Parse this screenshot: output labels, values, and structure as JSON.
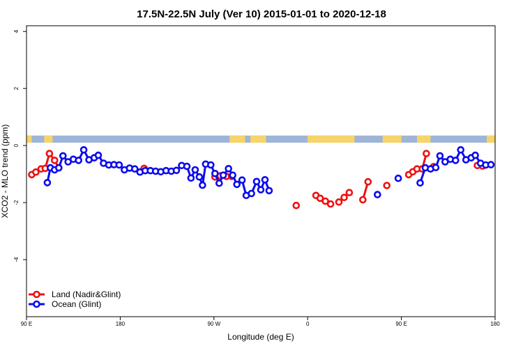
{
  "chart_data": {
    "type": "line",
    "title": "17.5N-22.5N July (Ver 10)   2015-01-01 to 2020-12-18",
    "xlabel": "Longitude (deg E)",
    "ylabel": "XCO2 - MLO trend (ppm)",
    "x_tick_labels": [
      "90 E",
      "180",
      "90 W",
      "0",
      "90 E",
      "180"
    ],
    "x_tick_positions": [
      90,
      180,
      270,
      360,
      450,
      540
    ],
    "xlim": [
      90,
      540
    ],
    "y_ticks": [
      4,
      2,
      0,
      -2,
      -4
    ],
    "ylim": [
      -6,
      4.2
    ],
    "grid": false,
    "legend_position": "bottom-left",
    "map_strip": {
      "y_range": [
        0.1,
        0.35
      ],
      "ocean_color": "#9eb5d8",
      "land_color": "#f6d46a"
    },
    "series": [
      {
        "name": "Land (Nadir&Glint)",
        "color": "#ee1111",
        "segments": [
          [
            [
              95,
              -1.02
            ],
            [
              99,
              -0.93
            ],
            [
              104,
              -0.82
            ],
            [
              108,
              -0.8
            ],
            [
              112,
              -0.28
            ],
            [
              117,
              -0.52
            ],
            [
              121,
              -0.78
            ]
          ],
          [
            [
              203,
              -0.8
            ]
          ],
          [
            [
              271,
              -1.1
            ],
            [
              276,
              -1.06
            ],
            [
              282,
              -1.08
            ],
            [
              287,
              -1.08
            ]
          ],
          [
            [
              349,
              -2.1
            ]
          ],
          [
            [
              368,
              -1.75
            ],
            [
              372,
              -1.85
            ],
            [
              377,
              -1.95
            ],
            [
              382,
              -2.05
            ]
          ],
          [
            [
              390,
              -1.98
            ],
            [
              395,
              -1.82
            ],
            [
              400,
              -1.65
            ]
          ],
          [
            [
              413,
              -1.9
            ],
            [
              418,
              -1.27
            ]
          ],
          [
            [
              436,
              -1.4
            ]
          ],
          [
            [
              457,
              -1.02
            ],
            [
              461,
              -0.92
            ],
            [
              465,
              -0.82
            ],
            [
              470,
              -0.82
            ],
            [
              474,
              -0.28
            ]
          ],
          [
            [
              481,
              -0.74
            ]
          ],
          [
            [
              523,
              -0.7
            ],
            [
              528,
              -0.72
            ]
          ]
        ]
      },
      {
        "name": "Ocean (Glint)",
        "color": "#0b0bee",
        "segments": [
          [
            [
              110,
              -1.3
            ],
            [
              113,
              -0.78
            ],
            [
              117,
              -0.85
            ],
            [
              121,
              -0.78
            ],
            [
              125,
              -0.36
            ],
            [
              130,
              -0.57
            ],
            [
              135,
              -0.48
            ],
            [
              140,
              -0.52
            ],
            [
              145,
              -0.15
            ],
            [
              150,
              -0.5
            ],
            [
              155,
              -0.43
            ],
            [
              159,
              -0.34
            ],
            [
              164,
              -0.62
            ],
            [
              169,
              -0.68
            ],
            [
              174,
              -0.67
            ],
            [
              179,
              -0.68
            ],
            [
              184,
              -0.85
            ],
            [
              189,
              -0.79
            ],
            [
              194,
              -0.82
            ],
            [
              199,
              -0.93
            ],
            [
              204,
              -0.88
            ],
            [
              209,
              -0.88
            ],
            [
              214,
              -0.9
            ],
            [
              219,
              -0.92
            ],
            [
              224,
              -0.88
            ],
            [
              229,
              -0.9
            ],
            [
              234,
              -0.87
            ],
            [
              239,
              -0.7
            ],
            [
              244,
              -0.73
            ],
            [
              248,
              -1.14
            ],
            [
              252,
              -0.85
            ],
            [
              256,
              -1.1
            ],
            [
              259,
              -1.39
            ],
            [
              262,
              -0.65
            ],
            [
              267,
              -0.68
            ],
            [
              271,
              -0.98
            ],
            [
              275,
              -1.32
            ],
            [
              279,
              -1.04
            ],
            [
              284,
              -0.81
            ],
            [
              288,
              -1.04
            ],
            [
              292,
              -1.36
            ],
            [
              297,
              -1.21
            ],
            [
              301,
              -1.75
            ],
            [
              306,
              -1.68
            ],
            [
              311,
              -1.26
            ],
            [
              315,
              -1.55
            ],
            [
              319,
              -1.2
            ],
            [
              323,
              -1.58
            ]
          ],
          [
            [
              427,
              -1.72
            ]
          ],
          [
            [
              447,
              -1.15
            ]
          ],
          [
            [
              468,
              -1.31
            ],
            [
              473,
              -0.78
            ],
            [
              478,
              -0.82
            ],
            [
              483,
              -0.77
            ],
            [
              487,
              -0.36
            ],
            [
              492,
              -0.57
            ],
            [
              497,
              -0.48
            ],
            [
              502,
              -0.52
            ],
            [
              507,
              -0.15
            ],
            [
              512,
              -0.5
            ],
            [
              517,
              -0.43
            ],
            [
              521,
              -0.34
            ],
            [
              526,
              -0.62
            ],
            [
              531,
              -0.68
            ],
            [
              536,
              -0.67
            ]
          ]
        ]
      }
    ]
  }
}
